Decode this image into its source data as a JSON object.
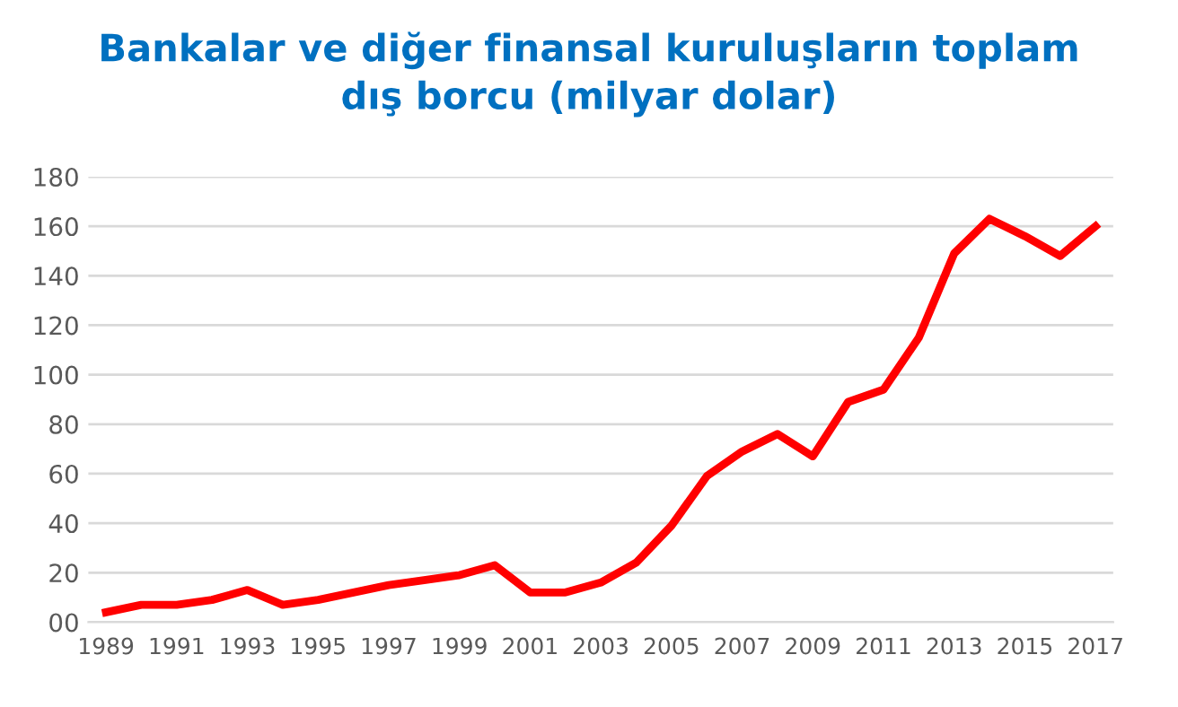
{
  "chart_data": {
    "type": "line",
    "title": "Bankalar ve diğer finansal kuruluşların toplam\ndış borcu (milyar dolar)",
    "categories": [
      "1989",
      null,
      "1991",
      null,
      "1993",
      null,
      "1995",
      null,
      "1997",
      null,
      "1999",
      null,
      "2001",
      null,
      "2003",
      null,
      "2005",
      null,
      "2007",
      null,
      "2009",
      null,
      "2011",
      null,
      "2013",
      null,
      "2015",
      null,
      "2017"
    ],
    "series": [
      {
        "color": "#ff0000",
        "values": [
          4,
          7,
          7,
          9,
          13,
          7,
          9,
          12,
          15,
          17,
          19,
          23,
          12,
          12,
          16,
          24,
          39,
          59,
          69,
          76,
          67,
          89,
          94,
          115,
          149,
          163,
          156,
          148,
          160
        ]
      }
    ],
    "ylim": [
      0,
      180
    ],
    "yticks": [
      {
        "value": 0,
        "label": "00"
      },
      20,
      40,
      60,
      80,
      100,
      120,
      140,
      160,
      180
    ],
    "grid": "y",
    "marker": "none",
    "line_style": "solid",
    "legend": false
  }
}
